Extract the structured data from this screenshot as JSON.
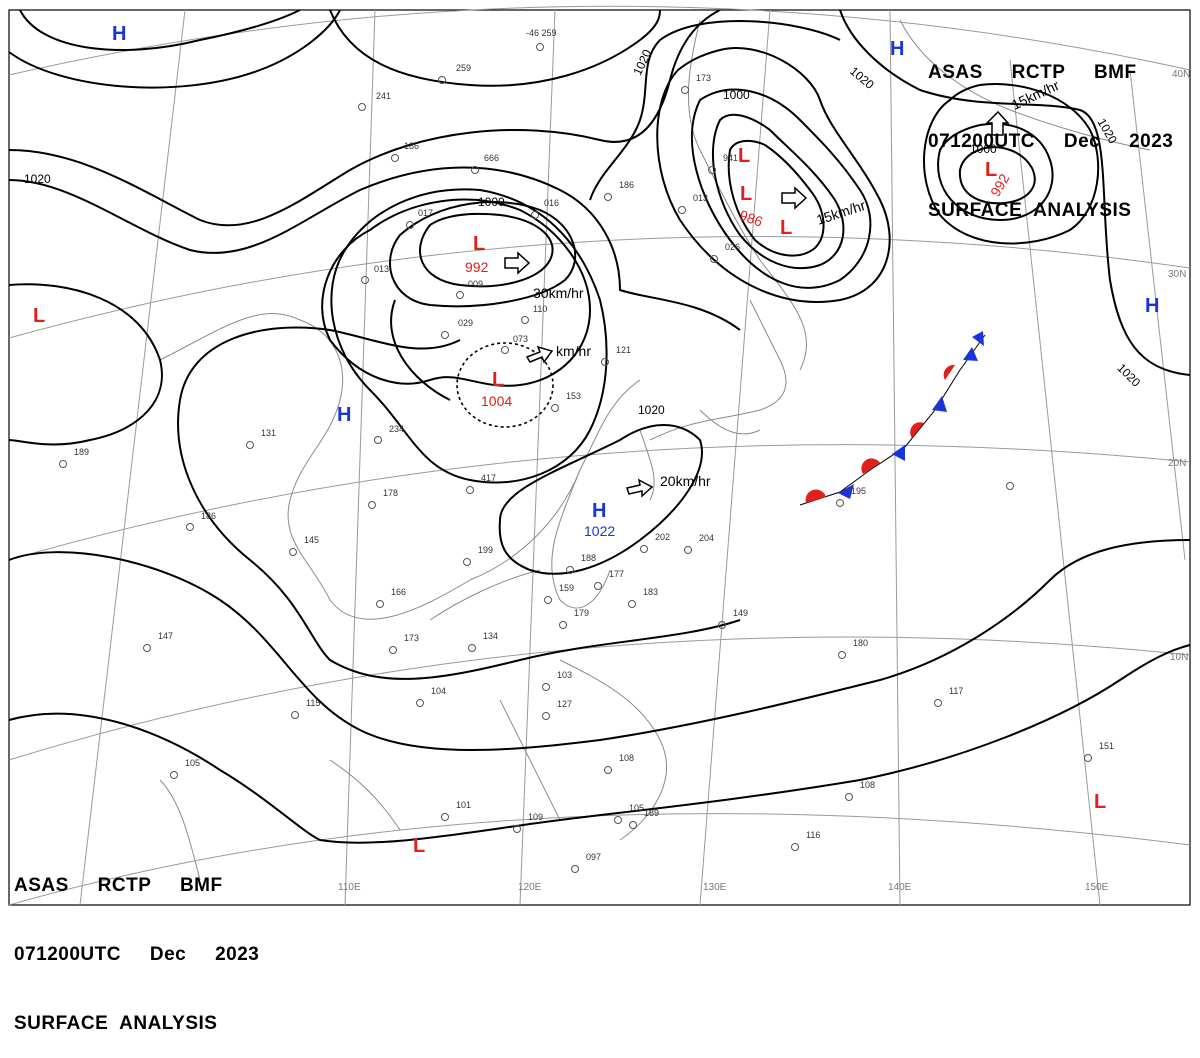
{
  "header": {
    "line1": "ASAS     RCTP     BMF",
    "line2": "071200UTC     Dec     2023",
    "line3": "SURFACE  ANALYSIS"
  },
  "footer": {
    "line1": "ASAS     RCTP     BMF",
    "line2": "071200UTC     Dec     2023",
    "line3": "SURFACE  ANALYSIS"
  },
  "latitude_labels": [
    "40N",
    "30N",
    "20N",
    "10N"
  ],
  "longitude_labels": [
    "110E",
    "120E",
    "130E",
    "140E",
    "150E"
  ],
  "pressure_systems": [
    {
      "type": "H",
      "value": ""
    },
    {
      "type": "H",
      "value": ""
    },
    {
      "type": "H",
      "value": ""
    },
    {
      "type": "H",
      "value": ""
    },
    {
      "type": "H",
      "value": "1022"
    },
    {
      "type": "L",
      "value": ""
    },
    {
      "type": "L",
      "value": "992"
    },
    {
      "type": "L",
      "value": "1004"
    },
    {
      "type": "L",
      "value": ""
    },
    {
      "type": "L",
      "value": "986"
    },
    {
      "type": "L",
      "value": ""
    },
    {
      "type": "L",
      "value": "992"
    },
    {
      "type": "L",
      "value": ""
    },
    {
      "type": "L",
      "value": ""
    }
  ],
  "motions": [
    "30km/hr",
    "km/hr",
    "15km/hr",
    "15km/hr",
    "20km/hr"
  ],
  "isobar_labels": [
    "1020",
    "1020",
    "1020",
    "1020",
    "1020",
    "1000",
    "1000",
    "1000"
  ],
  "colors": {
    "high": "#1a35d6",
    "low": "#e0201c",
    "isobar": "#000000",
    "grid": "#9a9a9a",
    "coast": "#8a8a8a"
  },
  "station_plots": [
    "-46  259",
    "259",
    "241",
    "186",
    "666",
    "016",
    "017",
    "013",
    "009",
    "110",
    "029",
    "073",
    "121",
    "153",
    "417",
    "234",
    "131",
    "178",
    "145",
    "186",
    "189",
    "199",
    "188",
    "177",
    "183",
    "159",
    "179",
    "166",
    "173",
    "134",
    "147",
    "115",
    "104",
    "103",
    "127",
    "105",
    "101",
    "109",
    "097",
    "108",
    "105",
    "189",
    "149",
    "180",
    "108",
    "116",
    "117",
    "151",
    "204",
    "202",
    "026",
    "013",
    "941",
    "173",
    "186",
    "195"
  ]
}
